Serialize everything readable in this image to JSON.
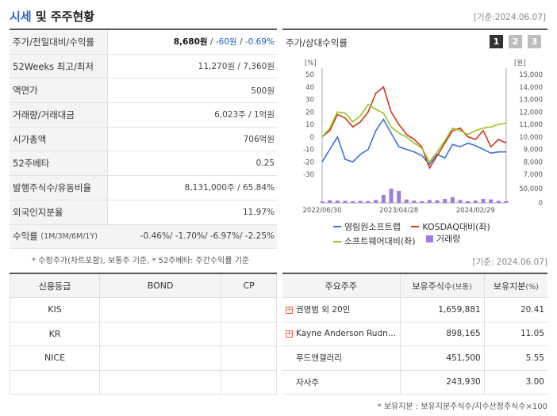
{
  "header": {
    "title_accent": "시세",
    "title_rest": " 및 주주현황",
    "as_of": "[기준:2024.06.07]"
  },
  "summary": [
    {
      "label": "주가/전일대비/수익률",
      "value_price": "8,680원",
      "value_change": "-60원",
      "value_rate": "-0.69%"
    },
    {
      "label": "52Weeks 최고/최저",
      "value": "11,270원 / 7,360원"
    },
    {
      "label": "액면가",
      "value": "500원"
    },
    {
      "label": "거래량/거래대금",
      "value": "6,023주 / 1억원"
    },
    {
      "label": "시가총액",
      "value": "706억원"
    },
    {
      "label": "52주베타",
      "value": "0.25"
    },
    {
      "label": "발행주식수/유동비율",
      "value": "8,131,000주 / 65.84%"
    },
    {
      "label": "외국인지분율",
      "value": "11.97%"
    }
  ],
  "returns": {
    "label": "수익률",
    "label_small": "(1M/3M/6M/1Y)",
    "value": "-0.46%/ -1.70%/ -6.97%/ -2.25%"
  },
  "note_left": "* 수정주가(차트포함), 보통주 기준, * 52주베타: 주간수익률 기준",
  "chart": {
    "title": "주가/상대수익률",
    "period_tabs": [
      "1",
      "2",
      "3"
    ],
    "active_tab": "1",
    "left_unit": "[%]",
    "right_unit": "[원]",
    "left_ticks": [
      "50",
      "40",
      "30",
      "20",
      "10",
      "0",
      "-10",
      "-20",
      "-30"
    ],
    "right_ticks": [
      "15,000",
      "14,000",
      "13,000",
      "12,000",
      "11,000",
      "10,000",
      "9,000",
      "8,000",
      "7,000"
    ],
    "volume_ticks": [
      "50,000",
      "0"
    ],
    "x_labels": [
      "2022/06/30",
      "2023/04/28",
      "2024/02/29"
    ],
    "legend": [
      "영림원소프트랩",
      "KOSDAQ대비(좌)",
      "소프트웨어대비(좌)",
      "거래량"
    ],
    "colors": {
      "stock": "#3a72d8",
      "kosdaq": "#d0361d",
      "software": "#9ac21c",
      "volume": "#a07be0"
    }
  },
  "chart_data": {
    "type": "line",
    "x": [
      "2022/06/30",
      "2022/07",
      "2022/08",
      "2022/09",
      "2022/10",
      "2022/11",
      "2022/12",
      "2023/01",
      "2023/02",
      "2023/03",
      "2023/04/28",
      "2023/05",
      "2023/06",
      "2023/07",
      "2023/08",
      "2023/09",
      "2023/10",
      "2023/11",
      "2023/12",
      "2024/01",
      "2024/02/29",
      "2024/03",
      "2024/04",
      "2024/05",
      "2024/06"
    ],
    "series": [
      {
        "name": "영림원소프트랩",
        "axis": "left",
        "values": [
          -20,
          -10,
          0,
          -18,
          -20,
          -14,
          -10,
          5,
          14,
          3,
          -8,
          -10,
          -12,
          -15,
          -22,
          -14,
          -17,
          -6,
          -8,
          -5,
          -7,
          -10,
          -13,
          -12,
          -12
        ]
      },
      {
        "name": "KOSDAQ대비(좌)",
        "axis": "left",
        "values": [
          0,
          5,
          18,
          15,
          8,
          12,
          20,
          35,
          40,
          20,
          10,
          2,
          -2,
          -8,
          -25,
          -15,
          -5,
          5,
          7,
          0,
          -2,
          5,
          -8,
          -2,
          -5
        ]
      },
      {
        "name": "소프트웨어대비(좌)",
        "axis": "left",
        "values": [
          0,
          7,
          20,
          19,
          12,
          17,
          26,
          22,
          19,
          8,
          3,
          0,
          -5,
          -9,
          -20,
          -12,
          -3,
          7,
          5,
          2,
          5,
          7,
          8,
          10,
          11
        ]
      },
      {
        "name": "거래량",
        "axis": "volume",
        "values": [
          5000,
          9000,
          8000,
          7000,
          6000,
          7000,
          6000,
          10000,
          28000,
          50000,
          42000,
          12000,
          8000,
          6000,
          10000,
          9000,
          14000,
          20000,
          10000,
          6000,
          8000,
          14000,
          12000,
          7000,
          6000
        ]
      }
    ],
    "ylim_left": [
      -30,
      50
    ],
    "ylim_right": [
      7000,
      15000
    ],
    "ylim_volume": [
      0,
      50000
    ],
    "legend_position": "bottom"
  },
  "as_of_2": "[기준: 2024.06.07]",
  "credit": {
    "headers": [
      "신용등급",
      "BOND",
      "CP"
    ],
    "rows": [
      [
        "KIS",
        "",
        ""
      ],
      [
        "KR",
        "",
        ""
      ],
      [
        "NICE",
        "",
        ""
      ],
      [
        "",
        "",
        ""
      ]
    ]
  },
  "holders": {
    "headers": [
      "주요주주",
      "보유주식수",
      "(보통)",
      "보유지분",
      "(%)"
    ],
    "rows": [
      {
        "name": "권영범 외 20인",
        "plus": true,
        "shares": "1,659,881",
        "pct": "20.41"
      },
      {
        "name": "Kayne Anderson Rudn…",
        "plus": true,
        "shares": "898,165",
        "pct": "11.05"
      },
      {
        "name": "푸드앤갤러리",
        "plus": false,
        "shares": "451,500",
        "pct": "5.55"
      },
      {
        "name": "자사주",
        "plus": false,
        "shares": "243,930",
        "pct": "3.00"
      }
    ]
  },
  "note_right": "* 보유지분 : 보유지분주식수/지수산정주식수×100"
}
